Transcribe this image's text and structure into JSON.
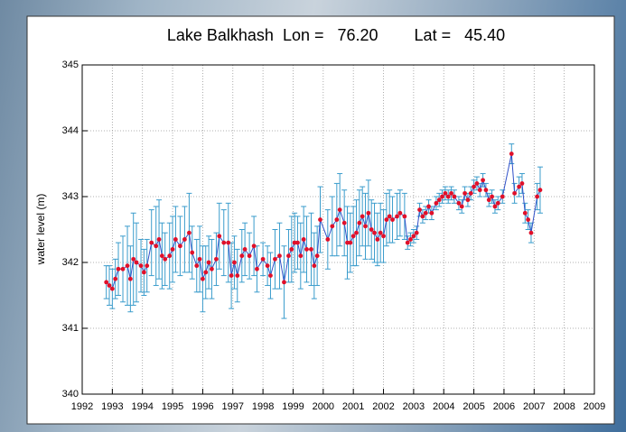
{
  "chart_data": {
    "type": "line",
    "title": "Lake Balkhash  Lon =   76.20        Lat =   45.40",
    "ylabel": "water level (m)",
    "xlim": [
      1992,
      2009
    ],
    "xticks": [
      1992,
      1993,
      1994,
      1995,
      1996,
      1997,
      1998,
      1999,
      2000,
      2001,
      2002,
      2003,
      2004,
      2005,
      2006,
      2007,
      2008,
      2009
    ],
    "ylim": [
      340,
      345
    ],
    "yticks": [
      340,
      341,
      342,
      343,
      344,
      345
    ],
    "grid": true,
    "line_color": "#3050c8",
    "marker_color": "#e0102a",
    "error_color": "#3a9ccc",
    "x": [
      1992.8,
      1992.9,
      1993.0,
      1993.1,
      1993.2,
      1993.35,
      1993.5,
      1993.6,
      1993.7,
      1993.8,
      1993.95,
      1994.05,
      1994.15,
      1994.3,
      1994.45,
      1994.55,
      1994.65,
      1994.75,
      1994.9,
      1995.0,
      1995.1,
      1995.25,
      1995.4,
      1995.55,
      1995.65,
      1995.8,
      1995.9,
      1996.0,
      1996.1,
      1996.2,
      1996.3,
      1996.45,
      1996.55,
      1996.7,
      1996.85,
      1996.95,
      1997.05,
      1997.15,
      1997.3,
      1997.4,
      1997.55,
      1997.7,
      1997.8,
      1998.0,
      1998.15,
      1998.25,
      1998.4,
      1998.55,
      1998.7,
      1998.85,
      1998.95,
      1999.05,
      1999.15,
      1999.25,
      1999.35,
      1999.45,
      1999.6,
      1999.7,
      1999.8,
      1999.9,
      2000.15,
      2000.3,
      2000.45,
      2000.55,
      2000.7,
      2000.8,
      2000.9,
      2001.0,
      2001.1,
      2001.2,
      2001.3,
      2001.4,
      2001.5,
      2001.6,
      2001.7,
      2001.8,
      2001.9,
      2002.0,
      2002.1,
      2002.2,
      2002.3,
      2002.45,
      2002.55,
      2002.7,
      2002.8,
      2002.9,
      2003.0,
      2003.1,
      2003.2,
      2003.3,
      2003.4,
      2003.5,
      2003.6,
      2003.75,
      2003.85,
      2003.95,
      2004.05,
      2004.15,
      2004.25,
      2004.35,
      2004.5,
      2004.6,
      2004.7,
      2004.8,
      2004.9,
      2005.0,
      2005.1,
      2005.2,
      2005.3,
      2005.4,
      2005.5,
      2005.6,
      2005.7,
      2005.8,
      2005.95,
      2006.25,
      2006.35,
      2006.5,
      2006.6,
      2006.7,
      2006.8,
      2006.9,
      2007.1,
      2007.2
    ],
    "values": [
      341.7,
      341.65,
      341.6,
      341.75,
      341.9,
      341.9,
      341.95,
      341.75,
      342.05,
      342.0,
      341.95,
      341.85,
      341.95,
      342.3,
      342.25,
      342.35,
      342.1,
      342.05,
      342.1,
      342.2,
      342.35,
      342.25,
      342.35,
      342.45,
      342.15,
      341.95,
      342.05,
      341.75,
      341.85,
      342.0,
      341.9,
      342.05,
      342.4,
      342.3,
      342.3,
      341.8,
      342.0,
      341.8,
      342.1,
      342.2,
      342.1,
      342.25,
      341.9,
      342.05,
      341.95,
      341.8,
      342.05,
      342.1,
      341.7,
      342.1,
      342.2,
      342.3,
      342.3,
      342.1,
      342.35,
      342.2,
      342.2,
      341.95,
      342.1,
      342.65,
      342.35,
      342.55,
      342.65,
      342.8,
      342.6,
      342.3,
      342.3,
      342.4,
      342.45,
      342.6,
      342.7,
      342.55,
      342.75,
      342.5,
      342.45,
      342.35,
      342.45,
      342.4,
      342.65,
      342.7,
      342.65,
      342.7,
      342.75,
      342.7,
      342.3,
      342.35,
      342.4,
      342.45,
      342.8,
      342.7,
      342.75,
      342.85,
      342.75,
      342.9,
      342.95,
      343.0,
      343.05,
      343.0,
      343.05,
      343.0,
      342.9,
      342.85,
      343.05,
      342.95,
      343.05,
      343.15,
      343.2,
      343.1,
      343.25,
      343.1,
      342.95,
      343.0,
      342.85,
      342.9,
      343.0,
      343.65,
      343.05,
      343.15,
      343.2,
      342.75,
      342.65,
      342.45,
      343.0,
      343.1
    ],
    "errors": [
      0.25,
      0.3,
      0.3,
      0.3,
      0.4,
      0.5,
      0.6,
      0.5,
      0.7,
      0.6,
      0.4,
      0.35,
      0.4,
      0.5,
      0.6,
      0.6,
      0.5,
      0.4,
      0.5,
      0.5,
      0.5,
      0.45,
      0.5,
      0.6,
      0.4,
      0.4,
      0.5,
      0.5,
      0.4,
      0.4,
      0.45,
      0.4,
      0.5,
      0.5,
      0.6,
      0.5,
      0.4,
      0.4,
      0.4,
      0.4,
      0.35,
      0.45,
      0.35,
      0.25,
      0.3,
      0.35,
      0.45,
      0.5,
      0.55,
      0.4,
      0.5,
      0.45,
      0.4,
      0.5,
      0.5,
      0.5,
      0.55,
      0.5,
      0.45,
      0.5,
      0.45,
      0.45,
      0.55,
      0.55,
      0.5,
      0.55,
      0.45,
      0.45,
      0.5,
      0.5,
      0.45,
      0.5,
      0.5,
      0.45,
      0.45,
      0.4,
      0.45,
      0.4,
      0.4,
      0.4,
      0.35,
      0.35,
      0.35,
      0.35,
      0.1,
      0.1,
      0.1,
      0.1,
      0.1,
      0.1,
      0.1,
      0.1,
      0.1,
      0.1,
      0.1,
      0.1,
      0.1,
      0.1,
      0.1,
      0.1,
      0.1,
      0.1,
      0.1,
      0.1,
      0.1,
      0.1,
      0.1,
      0.1,
      0.1,
      0.1,
      0.1,
      0.1,
      0.1,
      0.1,
      0.1,
      0.15,
      0.15,
      0.15,
      0.15,
      0.15,
      0.15,
      0.15,
      0.2,
      0.35
    ]
  }
}
